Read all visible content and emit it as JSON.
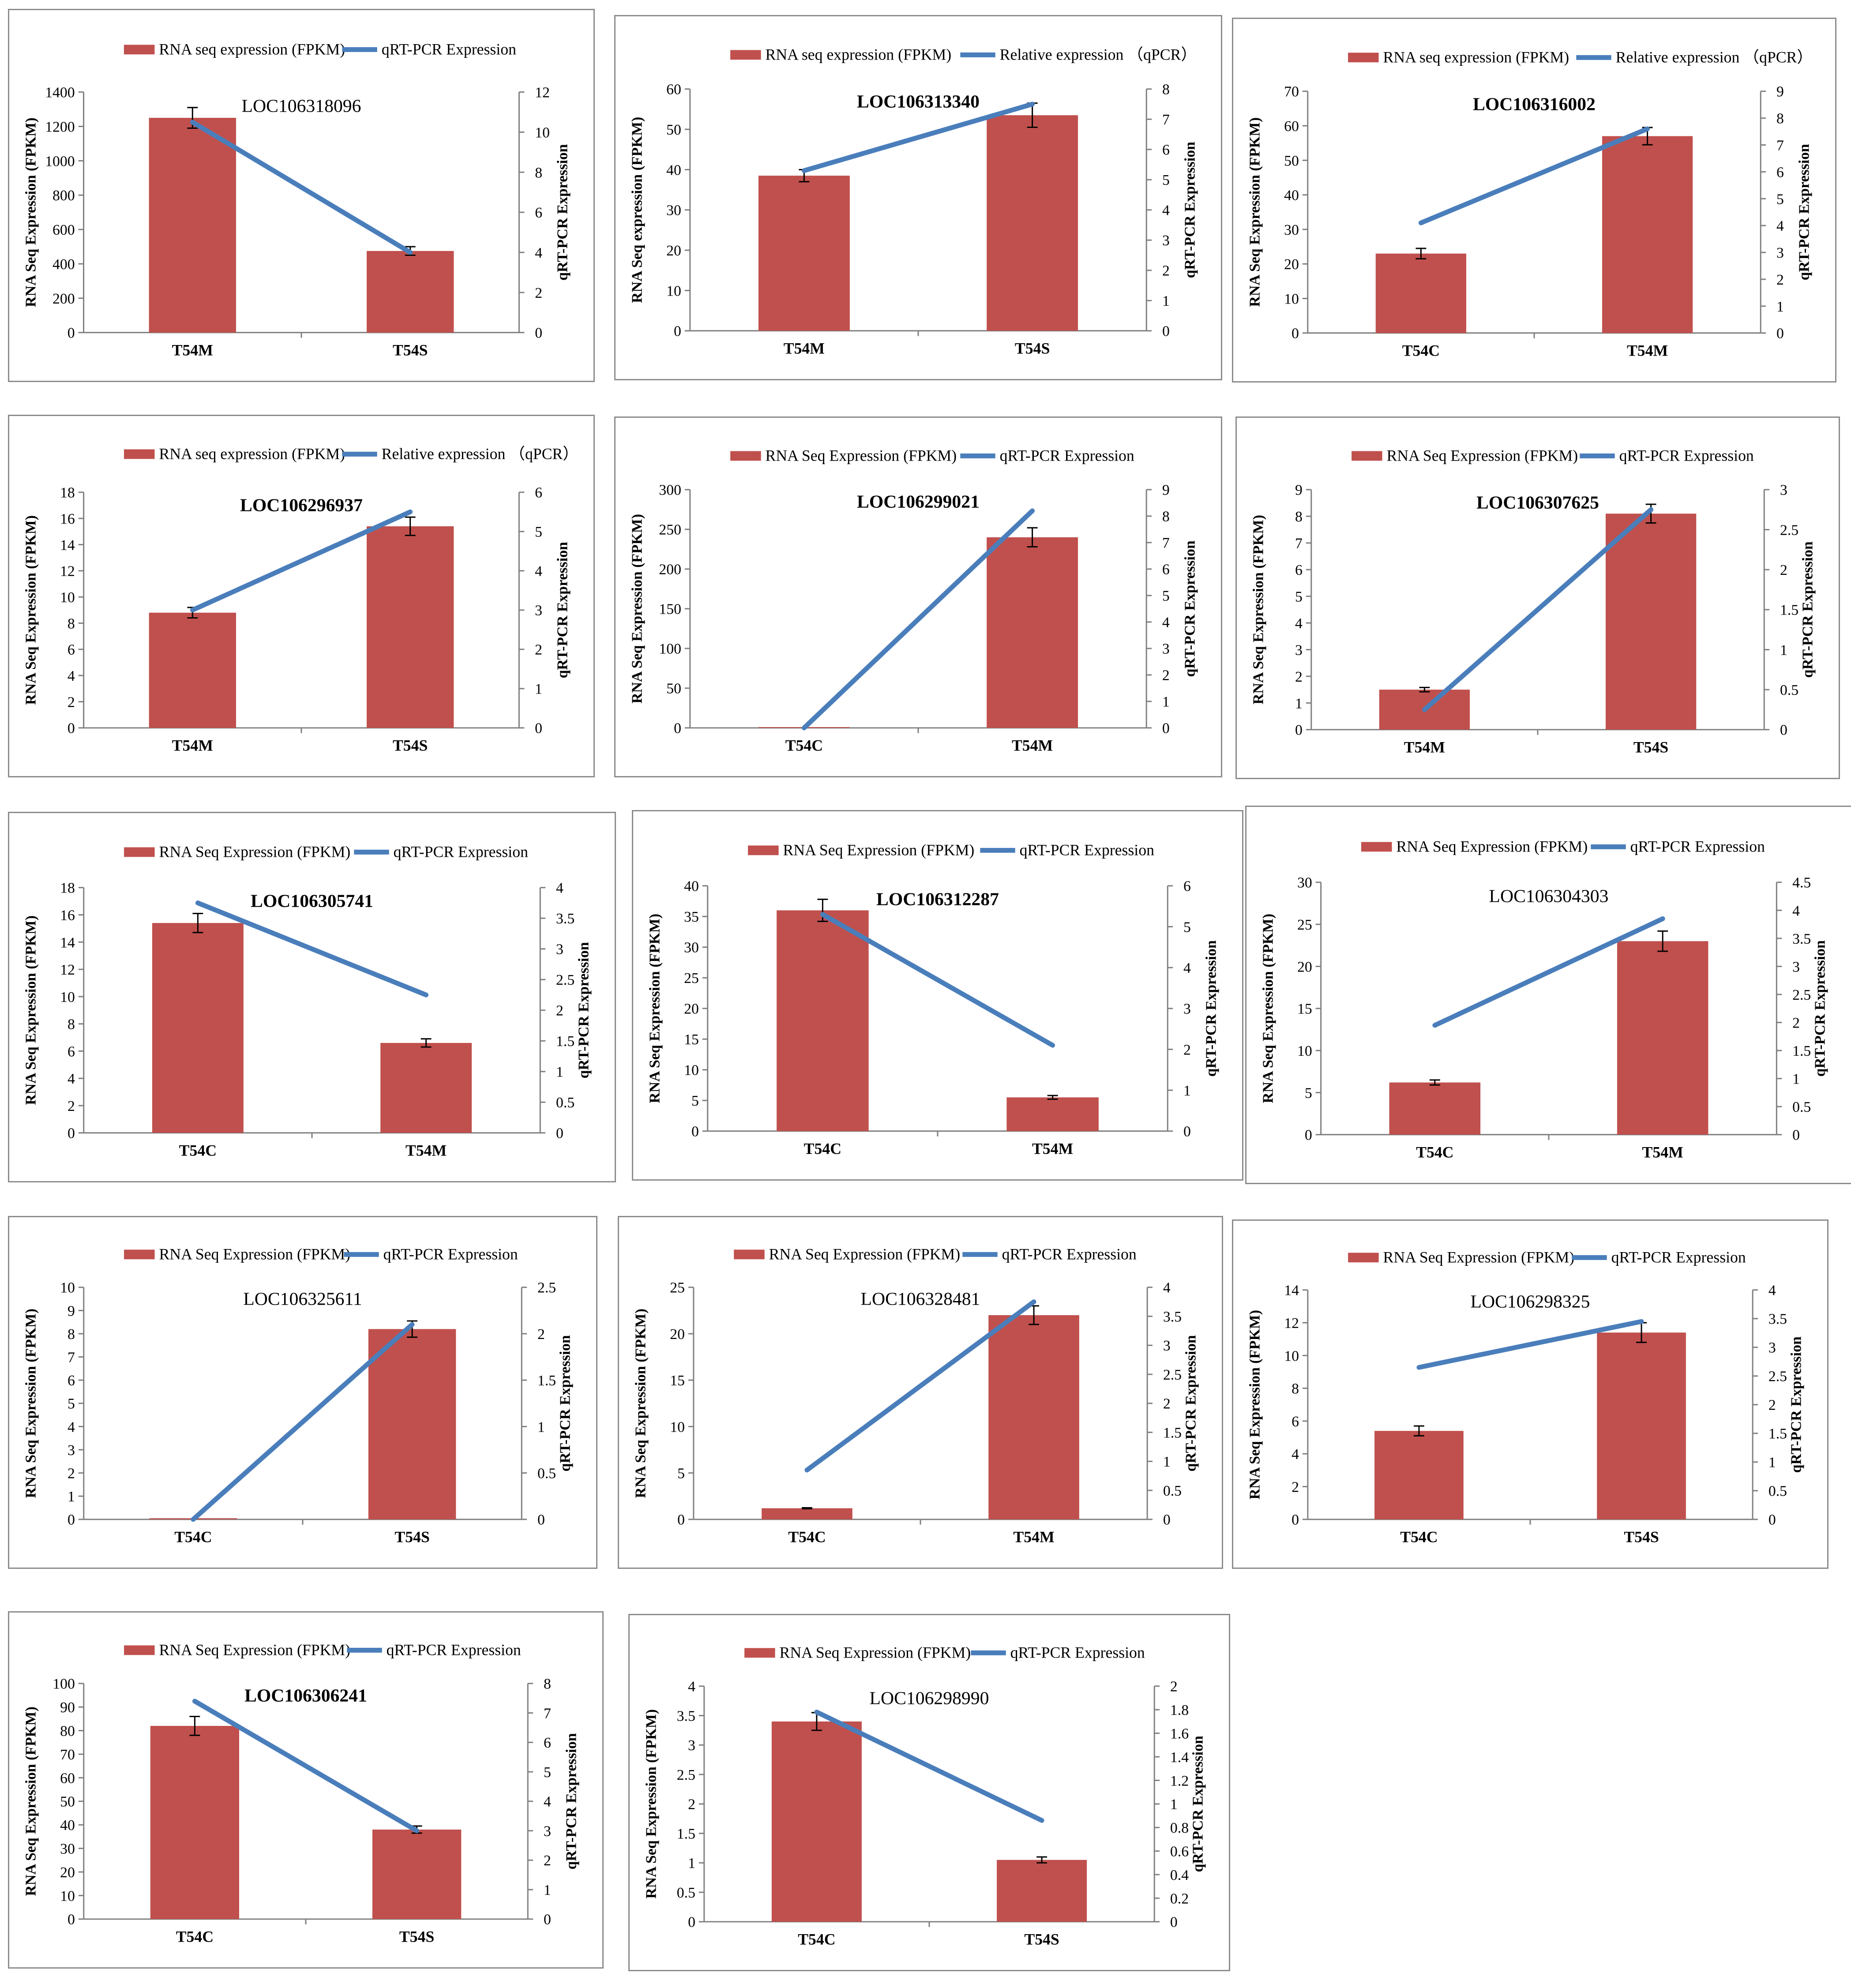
{
  "colors": {
    "bar": "#c0504d",
    "line": "#4a7ebb",
    "frame": "#8c8c8c"
  },
  "chart_data": [
    {
      "type": "bar+line",
      "title": "LOC106318096",
      "title_bold": false,
      "legend_bar": "RNA seq expression (FPKM)",
      "legend_line": "qRT-PCR Expression",
      "ylabel_left": "RNA Seq Expression (FPKM)",
      "ylabel_right": "qRT-PCR Expression",
      "ylim_left": [
        0,
        1400
      ],
      "ticks_left": [
        "0",
        "200",
        "400",
        "600",
        "800",
        "1000",
        "1200",
        "1400"
      ],
      "ylim_right": [
        0,
        12
      ],
      "ticks_right": [
        "0",
        "2",
        "4",
        "6",
        "8",
        "10",
        "12"
      ],
      "categories": [
        "T54M",
        "T54S"
      ],
      "bar_values": [
        1250,
        475
      ],
      "bar_errors": [
        60,
        25
      ],
      "line_values": [
        10.5,
        4.0
      ]
    },
    {
      "type": "bar+line",
      "title": "LOC106313340",
      "title_bold": true,
      "legend_bar": "RNA seq expression (FPKM)",
      "legend_line": "Relative expression （qPCR）",
      "ylabel_left": "RNA Seq expression (FPKM)",
      "ylabel_right": "qRT-PCR Expression",
      "ylim_left": [
        0,
        60
      ],
      "ticks_left": [
        "0",
        "10",
        "20",
        "30",
        "40",
        "50",
        "60"
      ],
      "ylim_right": [
        0,
        8
      ],
      "ticks_right": [
        "0",
        "1",
        "2",
        "3",
        "4",
        "5",
        "6",
        "7",
        "8"
      ],
      "categories": [
        "T54M",
        "T54S"
      ],
      "bar_values": [
        38.5,
        53.5
      ],
      "bar_errors": [
        1.5,
        3.0
      ],
      "line_values": [
        5.3,
        7.5
      ]
    },
    {
      "type": "bar+line",
      "title": "LOC106316002",
      "title_bold": true,
      "legend_bar": "RNA seq expression (FPKM)",
      "legend_line": "Relative expression （qPCR）",
      "ylabel_left": "RNA Seq Expression (FPKM)",
      "ylabel_right": "qRT-PCR Expression",
      "ylim_left": [
        0,
        70
      ],
      "ticks_left": [
        "0",
        "10",
        "20",
        "30",
        "40",
        "50",
        "60",
        "70"
      ],
      "ylim_right": [
        0,
        9
      ],
      "ticks_right": [
        "0",
        "1",
        "2",
        "3",
        "4",
        "5",
        "6",
        "7",
        "8",
        "9"
      ],
      "categories": [
        "T54C",
        "T54M"
      ],
      "bar_values": [
        23,
        57
      ],
      "bar_errors": [
        1.5,
        2.5
      ],
      "line_values": [
        4.1,
        7.6
      ]
    },
    {
      "type": "bar+line",
      "title": "LOC106296937",
      "title_bold": true,
      "legend_bar": "RNA seq expression (FPKM)",
      "legend_line": "Relative expression （qPCR）",
      "ylabel_left": "RNA Seq Expression (FPKM)",
      "ylabel_right": "qRT-PCR Expression",
      "ylim_left": [
        0,
        18
      ],
      "ticks_left": [
        "0",
        "2",
        "4",
        "6",
        "8",
        "10",
        "12",
        "14",
        "16",
        "18"
      ],
      "ylim_right": [
        0,
        6
      ],
      "ticks_right": [
        "0",
        "1",
        "2",
        "3",
        "4",
        "5",
        "6"
      ],
      "categories": [
        "T54M",
        "T54S"
      ],
      "bar_values": [
        8.8,
        15.4
      ],
      "bar_errors": [
        0.4,
        0.7
      ],
      "line_values": [
        3.0,
        5.5
      ]
    },
    {
      "type": "bar+line",
      "title": "LOC106299021",
      "title_bold": true,
      "legend_bar": "RNA Seq Expression (FPKM)",
      "legend_line": "qRT-PCR Expression",
      "ylabel_left": "RNA Seq Expression (FPKM)",
      "ylabel_right": "qRT-PCR Expression",
      "ylim_left": [
        0,
        300
      ],
      "ticks_left": [
        "0",
        "50",
        "100",
        "150",
        "200",
        "250",
        "300"
      ],
      "ylim_right": [
        0,
        9
      ],
      "ticks_right": [
        "0",
        "1",
        "2",
        "3",
        "4",
        "5",
        "6",
        "7",
        "8",
        "9"
      ],
      "categories": [
        "T54C",
        "T54M"
      ],
      "bar_values": [
        1,
        240
      ],
      "bar_errors": [
        0,
        12
      ],
      "line_values": [
        0,
        8.2
      ]
    },
    {
      "type": "bar+line",
      "title": "LOC106307625",
      "title_bold": true,
      "legend_bar": "RNA Seq Expression (FPKM)",
      "legend_line": "qRT-PCR Expression",
      "ylabel_left": "RNA Seq Expression (FPKM)",
      "ylabel_right": "qRT-PCR Expression",
      "ylim_left": [
        0,
        9
      ],
      "ticks_left": [
        "0",
        "1",
        "2",
        "3",
        "4",
        "5",
        "6",
        "7",
        "8",
        "9"
      ],
      "ylim_right": [
        0,
        3
      ],
      "ticks_right": [
        "0",
        "0.5",
        "1",
        "1.5",
        "2",
        "2.5",
        "3"
      ],
      "categories": [
        "T54M",
        "T54S"
      ],
      "bar_values": [
        1.5,
        8.1
      ],
      "bar_errors": [
        0.08,
        0.35
      ],
      "line_values": [
        0.25,
        2.75
      ]
    },
    {
      "type": "bar+line",
      "title": "LOC106305741",
      "title_bold": true,
      "legend_bar": "RNA Seq Expression (FPKM)",
      "legend_line": "qRT-PCR Expression",
      "ylabel_left": "RNA Seq Expression (FPKM)",
      "ylabel_right": "qRT-PCR Expression",
      "ylim_left": [
        0,
        18
      ],
      "ticks_left": [
        "0",
        "2",
        "4",
        "6",
        "8",
        "10",
        "12",
        "14",
        "16",
        "18"
      ],
      "ylim_right": [
        0,
        4
      ],
      "ticks_right": [
        "0",
        "0.5",
        "1",
        "1.5",
        "2",
        "2.5",
        "3",
        "3.5",
        "4"
      ],
      "categories": [
        "T54C",
        "T54M"
      ],
      "bar_values": [
        15.4,
        6.6
      ],
      "bar_errors": [
        0.7,
        0.3
      ],
      "line_values": [
        3.75,
        2.25
      ]
    },
    {
      "type": "bar+line",
      "title": "LOC106312287",
      "title_bold": true,
      "legend_bar": "RNA Seq Expression (FPKM)",
      "legend_line": "qRT-PCR Expression",
      "ylabel_left": "RNA Seq Expression (FPKM)",
      "ylabel_right": "qRT-PCR Expression",
      "ylim_left": [
        0,
        40
      ],
      "ticks_left": [
        "0",
        "5",
        "10",
        "15",
        "20",
        "25",
        "30",
        "35",
        "40"
      ],
      "ylim_right": [
        0,
        6
      ],
      "ticks_right": [
        "0",
        "1",
        "2",
        "3",
        "4",
        "5",
        "6"
      ],
      "categories": [
        "T54C",
        "T54M"
      ],
      "bar_values": [
        36,
        5.5
      ],
      "bar_errors": [
        1.8,
        0.3
      ],
      "line_values": [
        5.3,
        2.1
      ]
    },
    {
      "type": "bar+line",
      "title": "LOC106304303",
      "title_bold": false,
      "legend_bar": "RNA Seq Expression (FPKM)",
      "legend_line": "qRT-PCR Expression",
      "ylabel_left": "RNA Seq Expression (FPKM)",
      "ylabel_right": "qRT-PCR Expression",
      "ylim_left": [
        0,
        30
      ],
      "ticks_left": [
        "0",
        "5",
        "10",
        "15",
        "20",
        "25",
        "30"
      ],
      "ylim_right": [
        0,
        4.5
      ],
      "ticks_right": [
        "0",
        "0.5",
        "1",
        "1.5",
        "2",
        "2.5",
        "3",
        "3.5",
        "4",
        "4.5"
      ],
      "categories": [
        "T54C",
        "T54M"
      ],
      "bar_values": [
        6.2,
        23
      ],
      "bar_errors": [
        0.3,
        1.2
      ],
      "line_values": [
        1.95,
        3.85
      ]
    },
    {
      "type": "bar+line",
      "title": "LOC106325611",
      "title_bold": false,
      "legend_bar": "RNA Seq Expression (FPKM)",
      "legend_line": "qRT-PCR Expression",
      "ylabel_left": "RNA Seq Expression (FPKM)",
      "ylabel_right": "qRT-PCR Expression",
      "ylim_left": [
        0,
        10
      ],
      "ticks_left": [
        "0",
        "1",
        "2",
        "3",
        "4",
        "5",
        "6",
        "7",
        "8",
        "9",
        "10"
      ],
      "ylim_right": [
        0,
        2.5
      ],
      "ticks_right": [
        "0",
        "0.5",
        "1",
        "1.5",
        "2",
        "2.5"
      ],
      "categories": [
        "T54C",
        "T54S"
      ],
      "bar_values": [
        0.05,
        8.2
      ],
      "bar_errors": [
        0,
        0.35
      ],
      "line_values": [
        0,
        2.1
      ]
    },
    {
      "type": "bar+line",
      "title": "LOC106328481",
      "title_bold": false,
      "legend_bar": "RNA Seq Expression (FPKM)",
      "legend_line": "qRT-PCR Expression",
      "ylabel_left": "RNA Seq Expression (FPKM)",
      "ylabel_right": "qRT-PCR Expression",
      "ylim_left": [
        0,
        25
      ],
      "ticks_left": [
        "0",
        "5",
        "10",
        "15",
        "20",
        "25"
      ],
      "ylim_right": [
        0,
        4
      ],
      "ticks_right": [
        "0",
        "0.5",
        "1",
        "1.5",
        "2",
        "2.5",
        "3",
        "3.5",
        "4"
      ],
      "categories": [
        "T54C",
        "T54M"
      ],
      "bar_values": [
        1.2,
        22
      ],
      "bar_errors": [
        0.05,
        1.0
      ],
      "line_values": [
        0.85,
        3.75
      ]
    },
    {
      "type": "bar+line",
      "title": "LOC106298325",
      "title_bold": false,
      "legend_bar": "RNA Seq Expression (FPKM)",
      "legend_line": "qRT-PCR Expression",
      "ylabel_left": "RNA Seq Expression (FPKM)",
      "ylabel_right": "qRT-PCR Expression",
      "ylim_left": [
        0,
        14
      ],
      "ticks_left": [
        "0",
        "2",
        "4",
        "6",
        "8",
        "10",
        "12",
        "14"
      ],
      "ylim_right": [
        0,
        4
      ],
      "ticks_right": [
        "0",
        "0.5",
        "1",
        "1.5",
        "2",
        "2.5",
        "3",
        "3.5",
        "4"
      ],
      "categories": [
        "T54C",
        "T54S"
      ],
      "bar_values": [
        5.4,
        11.4
      ],
      "bar_errors": [
        0.3,
        0.6
      ],
      "line_values": [
        2.65,
        3.45
      ]
    },
    {
      "type": "bar+line",
      "title": "LOC106306241",
      "title_bold": true,
      "legend_bar": "RNA Seq Expression (FPKM)",
      "legend_line": "qRT-PCR Expression",
      "ylabel_left": "RNA Seq Expression (FPKM)",
      "ylabel_right": "qRT-PCR Expression",
      "ylim_left": [
        0,
        100
      ],
      "ticks_left": [
        "0",
        "10",
        "20",
        "30",
        "40",
        "50",
        "60",
        "70",
        "80",
        "90",
        "100"
      ],
      "ylim_right": [
        0,
        8
      ],
      "ticks_right": [
        "0",
        "1",
        "2",
        "3",
        "4",
        "5",
        "6",
        "7",
        "8"
      ],
      "categories": [
        "T54C",
        "T54S"
      ],
      "bar_values": [
        82,
        38
      ],
      "bar_errors": [
        4,
        1.5
      ],
      "line_values": [
        7.4,
        3.0
      ]
    },
    {
      "type": "bar+line",
      "title": "LOC106298990",
      "title_bold": false,
      "legend_bar": "RNA Seq Expression (FPKM)",
      "legend_line": "qRT-PCR Expression",
      "ylabel_left": "RNA Seq Expression (FPKM)",
      "ylabel_right": "qRT-PCR Expression",
      "ylim_left": [
        0,
        4
      ],
      "ticks_left": [
        "0",
        "0.5",
        "1",
        "1.5",
        "2",
        "2.5",
        "3",
        "3.5",
        "4"
      ],
      "ylim_right": [
        0,
        2
      ],
      "ticks_right": [
        "0",
        "0.2",
        "0.4",
        "0.6",
        "0.8",
        "1",
        "1.2",
        "1.4",
        "1.6",
        "1.8",
        "2"
      ],
      "categories": [
        "T54C",
        "T54S"
      ],
      "bar_values": [
        3.4,
        1.05
      ],
      "bar_errors": [
        0.15,
        0.05
      ],
      "line_values": [
        1.78,
        0.86
      ]
    }
  ]
}
